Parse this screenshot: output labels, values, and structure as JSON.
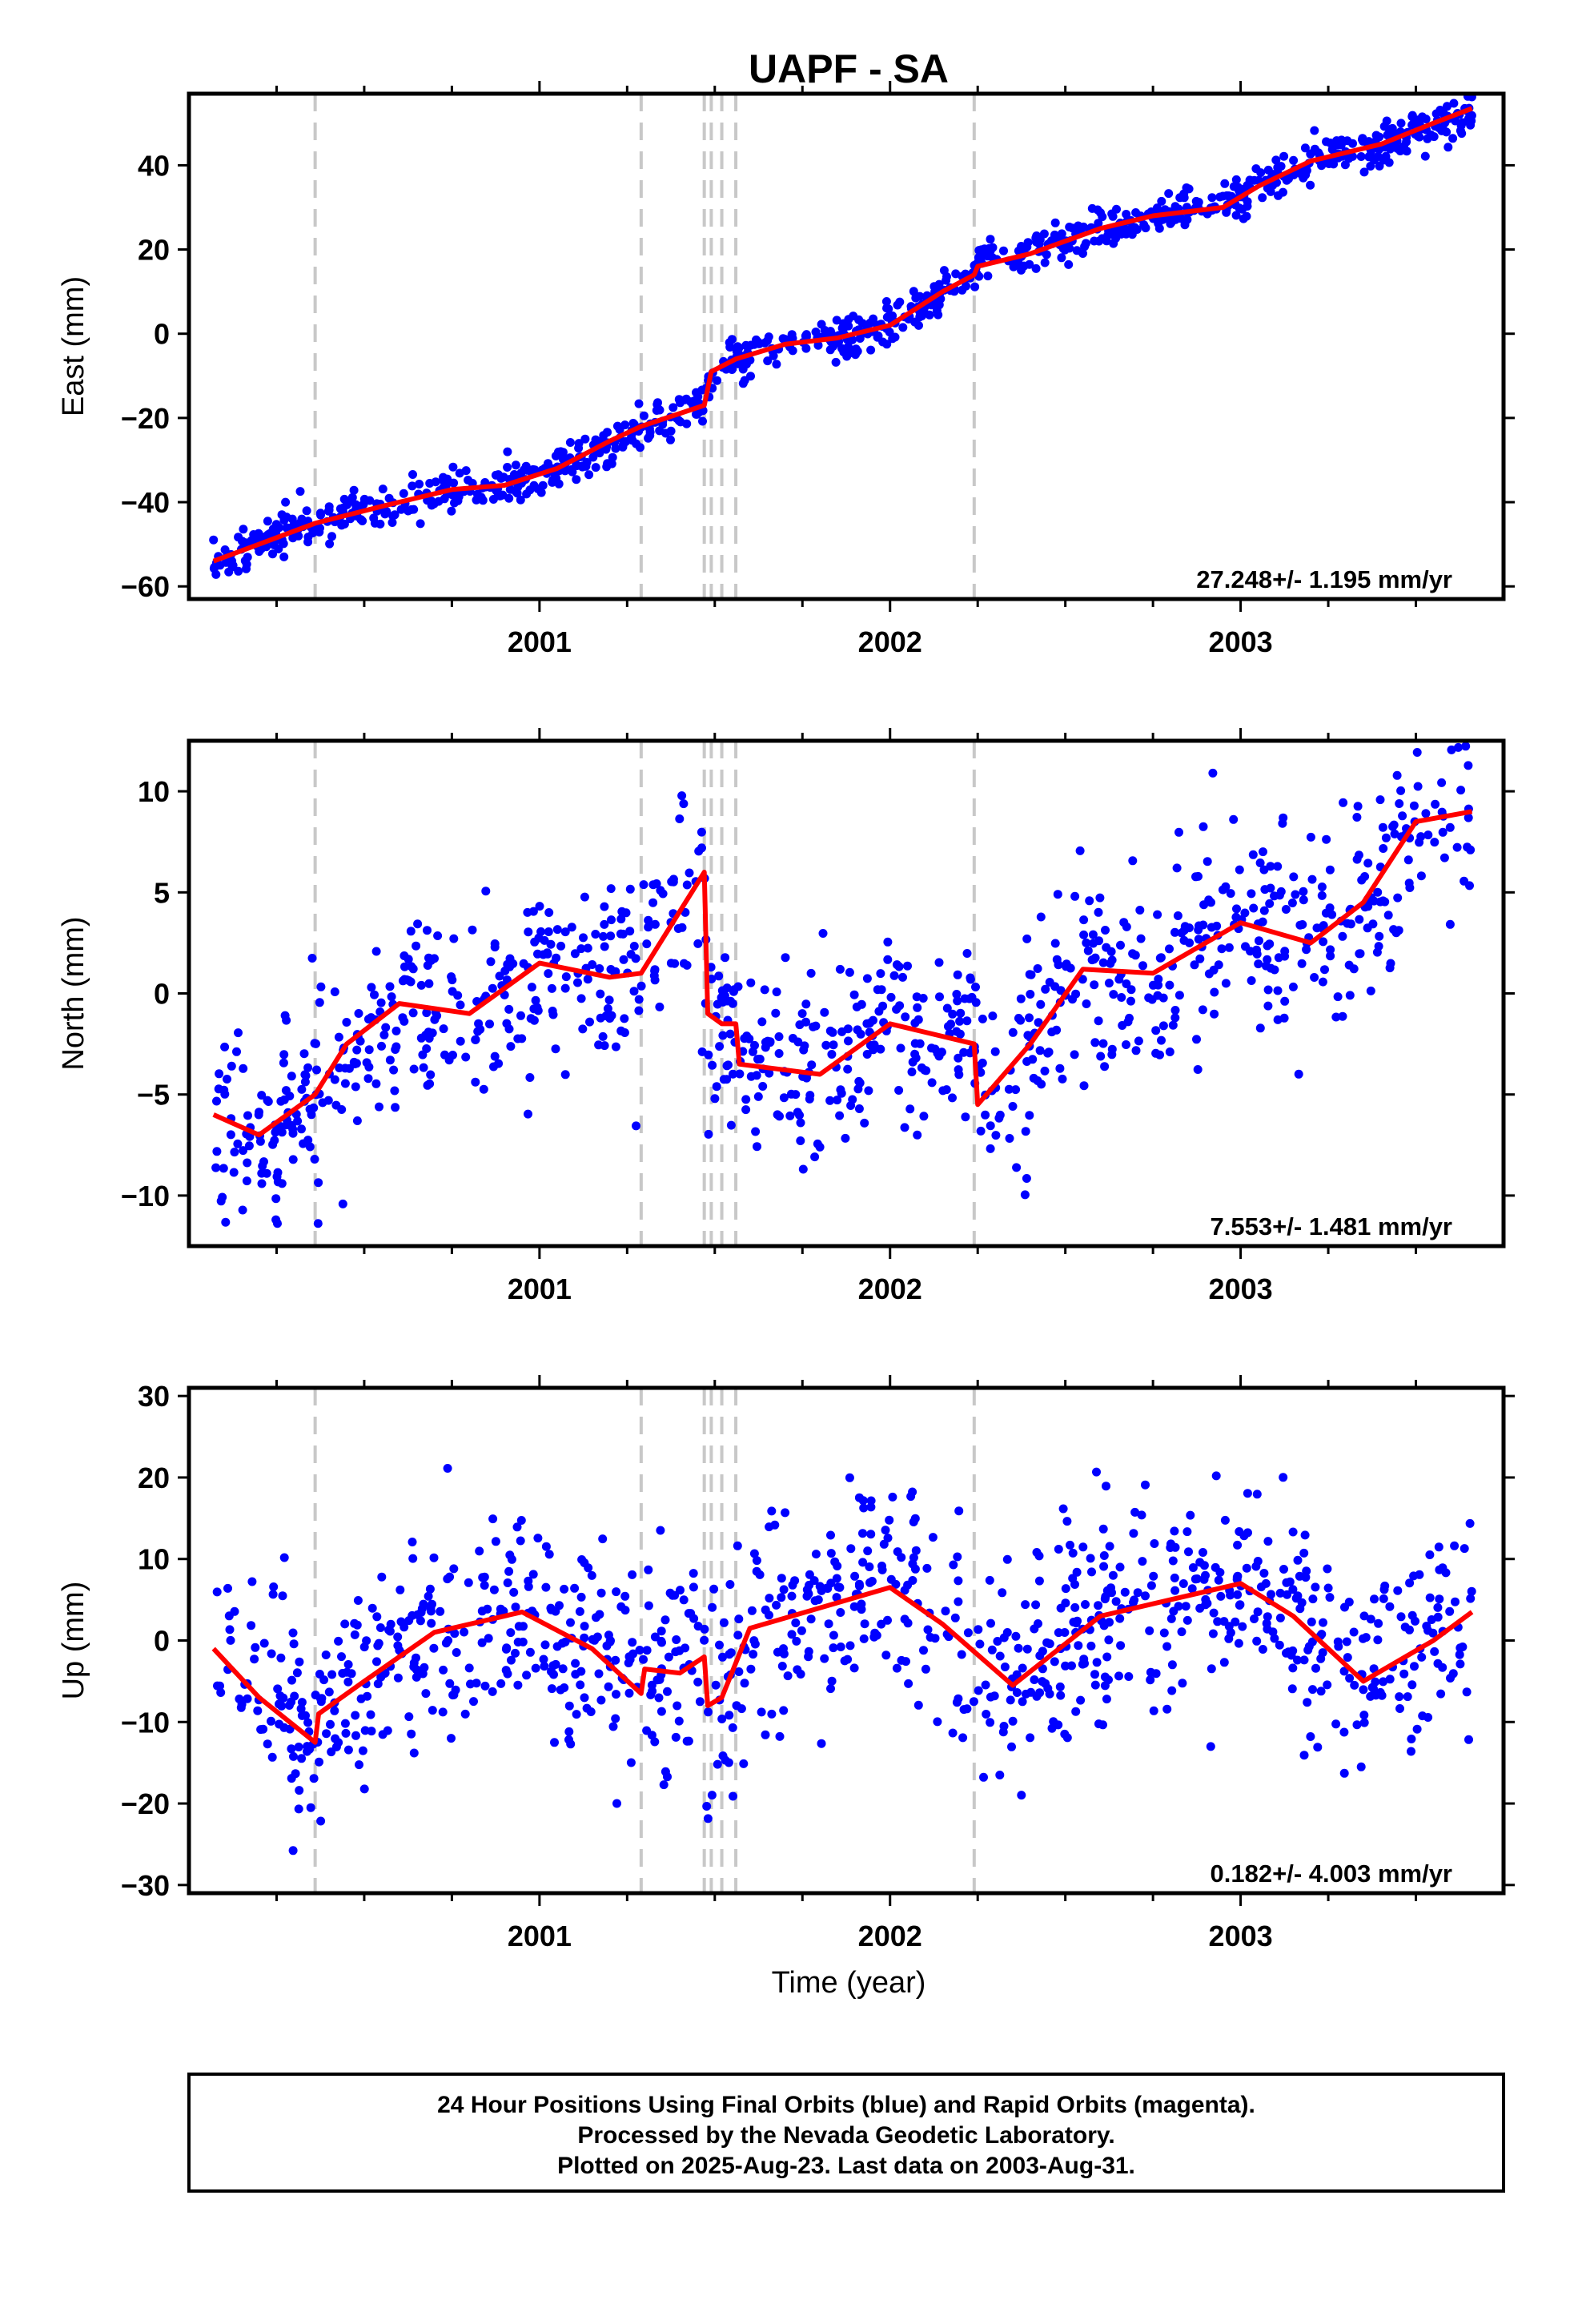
{
  "title": "UAPF - SA",
  "x_axis_label": "Time (year)",
  "footer_lines": [
    "24 Hour Positions Using Final Orbits (blue) and Rapid Orbits (magenta).",
    "Processed by the Nevada Geodetic Laboratory.",
    "Plotted on 2025-Aug-23. Last data on 2003-Aug-31."
  ],
  "colors": {
    "points": "#0000ff",
    "fit": "#ff0000",
    "steps": "#c8c8c8"
  },
  "chart_data": [
    {
      "type": "scatter",
      "ylabel": "East (mm)",
      "rate_label": "27.248+/- 1.195 mm/yr",
      "xlim": [
        2000.0,
        2003.75
      ],
      "ylim": [
        -63,
        57
      ],
      "x_ticks": [
        "2001",
        "2002",
        "2003"
      ],
      "x_tick_values": [
        2001,
        2002,
        2003
      ],
      "y_ticks": [
        -60,
        -40,
        -20,
        0,
        20,
        40
      ],
      "step_epochs": [
        2000.36,
        2001.29,
        2001.47,
        2001.49,
        2001.52,
        2001.56,
        2002.24
      ],
      "fit": [
        [
          2000.07,
          -54
        ],
        [
          2000.2,
          -50
        ],
        [
          2000.36,
          -45
        ],
        [
          2000.55,
          -41
        ],
        [
          2000.75,
          -37
        ],
        [
          2000.9,
          -36
        ],
        [
          2001.05,
          -32
        ],
        [
          2001.2,
          -25.5
        ],
        [
          2001.29,
          -22
        ],
        [
          2001.47,
          -17
        ],
        [
          2001.49,
          -9
        ],
        [
          2001.56,
          -6
        ],
        [
          2001.7,
          -2.5
        ],
        [
          2001.85,
          -1
        ],
        [
          2002.0,
          2
        ],
        [
          2002.15,
          10
        ],
        [
          2002.24,
          14
        ],
        [
          2002.25,
          16
        ],
        [
          2002.4,
          19
        ],
        [
          2002.6,
          25
        ],
        [
          2002.75,
          28
        ],
        [
          2002.95,
          30
        ],
        [
          2003.05,
          35
        ],
        [
          2003.2,
          41
        ],
        [
          2003.4,
          45
        ],
        [
          2003.55,
          50
        ],
        [
          2003.66,
          53.5
        ]
      ],
      "noise": 2.5,
      "n_points": 980,
      "seed": 11
    },
    {
      "type": "scatter",
      "ylabel": "North (mm)",
      "rate_label": "7.553+/- 1.481 mm/yr",
      "xlim": [
        2000.0,
        2003.75
      ],
      "ylim": [
        -12.5,
        12.5
      ],
      "x_ticks": [
        "2001",
        "2002",
        "2003"
      ],
      "x_tick_values": [
        2001,
        2002,
        2003
      ],
      "y_ticks": [
        -10,
        -5,
        0,
        5,
        10
      ],
      "step_epochs": [
        2000.36,
        2001.29,
        2001.47,
        2001.49,
        2001.52,
        2001.56,
        2002.24
      ],
      "fit": [
        [
          2000.07,
          -6
        ],
        [
          2000.2,
          -7
        ],
        [
          2000.36,
          -5
        ],
        [
          2000.45,
          -2.5
        ],
        [
          2000.6,
          -0.5
        ],
        [
          2000.8,
          -1
        ],
        [
          2001.0,
          1.5
        ],
        [
          2001.2,
          0.8
        ],
        [
          2001.29,
          1
        ],
        [
          2001.47,
          6
        ],
        [
          2001.48,
          -1
        ],
        [
          2001.52,
          -1.5
        ],
        [
          2001.56,
          -1.5
        ],
        [
          2001.57,
          -3.5
        ],
        [
          2001.8,
          -4
        ],
        [
          2002.0,
          -1.5
        ],
        [
          2002.24,
          -2.5
        ],
        [
          2002.25,
          -5.5
        ],
        [
          2002.4,
          -2.5
        ],
        [
          2002.55,
          1.2
        ],
        [
          2002.75,
          1
        ],
        [
          2003.0,
          3.5
        ],
        [
          2003.2,
          2.5
        ],
        [
          2003.35,
          4.5
        ],
        [
          2003.5,
          8.5
        ],
        [
          2003.66,
          9
        ]
      ],
      "noise": 2.4,
      "n_points": 980,
      "seed": 23
    },
    {
      "type": "scatter",
      "ylabel": "Up (mm)",
      "rate_label": "0.182+/- 4.003 mm/yr",
      "xlim": [
        2000.0,
        2003.75
      ],
      "ylim": [
        -31,
        31
      ],
      "x_ticks": [
        "2001",
        "2002",
        "2003"
      ],
      "x_tick_values": [
        2001,
        2002,
        2003
      ],
      "y_ticks": [
        -30,
        -20,
        -10,
        0,
        10,
        20,
        30
      ],
      "step_epochs": [
        2000.36,
        2001.29,
        2001.47,
        2001.49,
        2001.52,
        2001.56,
        2002.24
      ],
      "fit": [
        [
          2000.07,
          -1
        ],
        [
          2000.2,
          -7
        ],
        [
          2000.36,
          -12.5
        ],
        [
          2000.37,
          -9
        ],
        [
          2000.5,
          -5
        ],
        [
          2000.7,
          1
        ],
        [
          2000.95,
          3.5
        ],
        [
          2001.15,
          -1
        ],
        [
          2001.29,
          -6.5
        ],
        [
          2001.3,
          -3.5
        ],
        [
          2001.4,
          -4
        ],
        [
          2001.47,
          -2
        ],
        [
          2001.48,
          -8
        ],
        [
          2001.52,
          -7
        ],
        [
          2001.6,
          1.5
        ],
        [
          2001.8,
          4
        ],
        [
          2002.0,
          6.5
        ],
        [
          2002.15,
          2
        ],
        [
          2002.35,
          -5.5
        ],
        [
          2002.6,
          3
        ],
        [
          2002.8,
          5
        ],
        [
          2003.0,
          7
        ],
        [
          2003.15,
          3
        ],
        [
          2003.35,
          -5
        ],
        [
          2003.55,
          0
        ],
        [
          2003.66,
          3.5
        ]
      ],
      "noise": 6.5,
      "n_points": 980,
      "seed": 37
    }
  ]
}
